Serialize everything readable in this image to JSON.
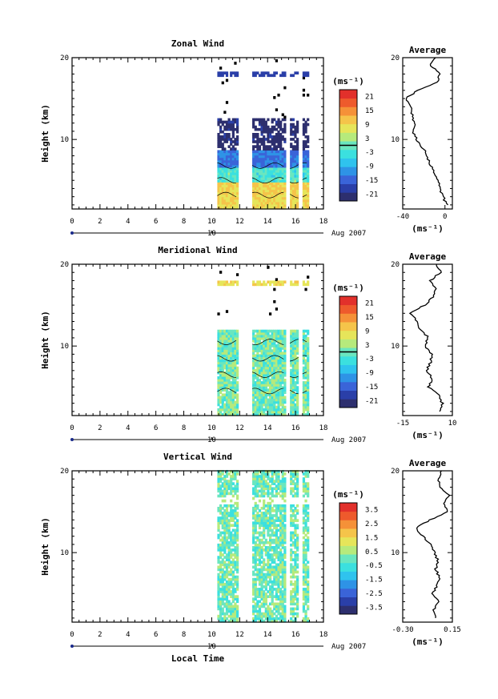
{
  "figure": {
    "date_label": "Aug 2007",
    "date_tick": "10",
    "xlabel": "Local Time"
  },
  "colors": {
    "scale": [
      "#2d2f6e",
      "#2a3fa8",
      "#3a64d8",
      "#2e93e6",
      "#2fc3ee",
      "#3be0df",
      "#6ae6bf",
      "#b6ea7c",
      "#e6e55a",
      "#f5c44a",
      "#f59138",
      "#ee5a2c",
      "#e2302b"
    ]
  },
  "chart_data": [
    {
      "type": "heatmap",
      "id": "zonal",
      "title": "Zonal Wind",
      "xlabel": "",
      "ylabel": "Height (km)",
      "xlim": [
        0,
        18
      ],
      "ylim": [
        1.5,
        20
      ],
      "xticks": [
        0,
        2,
        4,
        6,
        8,
        10,
        12,
        14,
        16,
        18
      ],
      "yticks": [
        10,
        20
      ],
      "x_coverage": [
        [
          10.4,
          11.9
        ],
        [
          12.9,
          15.3
        ],
        [
          15.6,
          16.2
        ],
        [
          16.5,
          16.9
        ]
      ],
      "colorbar": {
        "unit": "(ms⁻¹)",
        "ticks": [
          "21",
          "15",
          "9",
          "3",
          "-3",
          "-9",
          "-15",
          "-21"
        ],
        "range": [
          -24,
          24
        ],
        "marker": 0
      },
      "profile": {
        "title": "Average",
        "unit": "(ms⁻¹)",
        "xlim": [
          -40,
          7
        ],
        "xticks": [
          -40,
          0
        ],
        "heights": [
          2,
          3,
          4,
          5,
          6,
          7,
          8,
          9,
          10,
          11,
          12,
          13,
          14,
          15,
          16,
          17,
          18,
          19,
          20
        ],
        "values": [
          2,
          -2,
          -5,
          -7,
          -10,
          -14,
          -17,
          -21,
          -27,
          -30,
          -29,
          -31,
          -33,
          -37,
          -26,
          -8,
          -4,
          -14,
          -9
        ]
      }
    },
    {
      "type": "heatmap",
      "id": "meridional",
      "title": "Meridional Wind",
      "xlabel": "",
      "ylabel": "Height (km)",
      "xlim": [
        0,
        18
      ],
      "ylim": [
        1.5,
        20
      ],
      "xticks": [
        0,
        2,
        4,
        6,
        8,
        10,
        12,
        14,
        16,
        18
      ],
      "yticks": [
        10,
        20
      ],
      "x_coverage": [
        [
          10.4,
          11.9
        ],
        [
          12.9,
          15.3
        ],
        [
          15.6,
          16.2
        ],
        [
          16.5,
          16.9
        ]
      ],
      "colorbar": {
        "unit": "(ms⁻¹)",
        "ticks": [
          "21",
          "15",
          "9",
          "3",
          "-3",
          "-9",
          "-15",
          "-21"
        ],
        "range": [
          -24,
          24
        ],
        "marker": 0
      },
      "profile": {
        "title": "Average",
        "unit": "(ms⁻¹)",
        "xlim": [
          -15,
          10
        ],
        "xticks": [
          -15,
          10
        ],
        "heights": [
          2,
          3,
          4,
          5,
          6,
          7,
          8,
          9,
          10,
          11,
          12,
          13,
          14,
          15,
          16,
          17,
          18,
          19,
          20
        ],
        "values": [
          4,
          5,
          3,
          -2,
          0,
          -3,
          -1,
          0,
          -4,
          -2,
          -6,
          -8,
          -11,
          -4,
          0,
          2,
          -1,
          4,
          2
        ]
      }
    },
    {
      "type": "heatmap",
      "id": "vertical",
      "title": "Vertical Wind",
      "xlabel": "Local Time",
      "ylabel": "Height (km)",
      "xlim": [
        0,
        18
      ],
      "ylim": [
        1.5,
        20
      ],
      "xticks": [
        0,
        2,
        4,
        6,
        8,
        10,
        12,
        14,
        16,
        18
      ],
      "yticks": [
        10,
        20
      ],
      "x_coverage": [
        [
          10.4,
          11.9
        ],
        [
          12.9,
          15.3
        ],
        [
          15.6,
          16.2
        ],
        [
          16.5,
          16.9
        ]
      ],
      "colorbar": {
        "unit": "(ms⁻¹)",
        "ticks": [
          "3.5",
          "2.5",
          "1.5",
          "0.5",
          "-0.5",
          "-1.5",
          "-2.5",
          "-3.5"
        ],
        "range": [
          -4,
          4
        ],
        "marker": null
      },
      "profile": {
        "title": "Average",
        "unit": "(ms⁻¹)",
        "xlim": [
          -0.3,
          0.15
        ],
        "xticks": [
          -0.3,
          0.15
        ],
        "xticklabels": [
          "-0.30",
          "0.15"
        ],
        "heights": [
          2,
          3,
          4,
          5,
          6,
          7,
          8,
          9,
          10,
          11,
          12,
          13,
          14,
          15,
          16,
          17,
          18,
          19,
          20
        ],
        "values": [
          0.0,
          -0.02,
          0.02,
          -0.03,
          0.01,
          0.03,
          0.0,
          0.02,
          -0.01,
          -0.05,
          -0.12,
          -0.18,
          -0.05,
          0.1,
          0.07,
          0.12,
          0.04,
          0.02,
          0.05
        ]
      }
    }
  ]
}
